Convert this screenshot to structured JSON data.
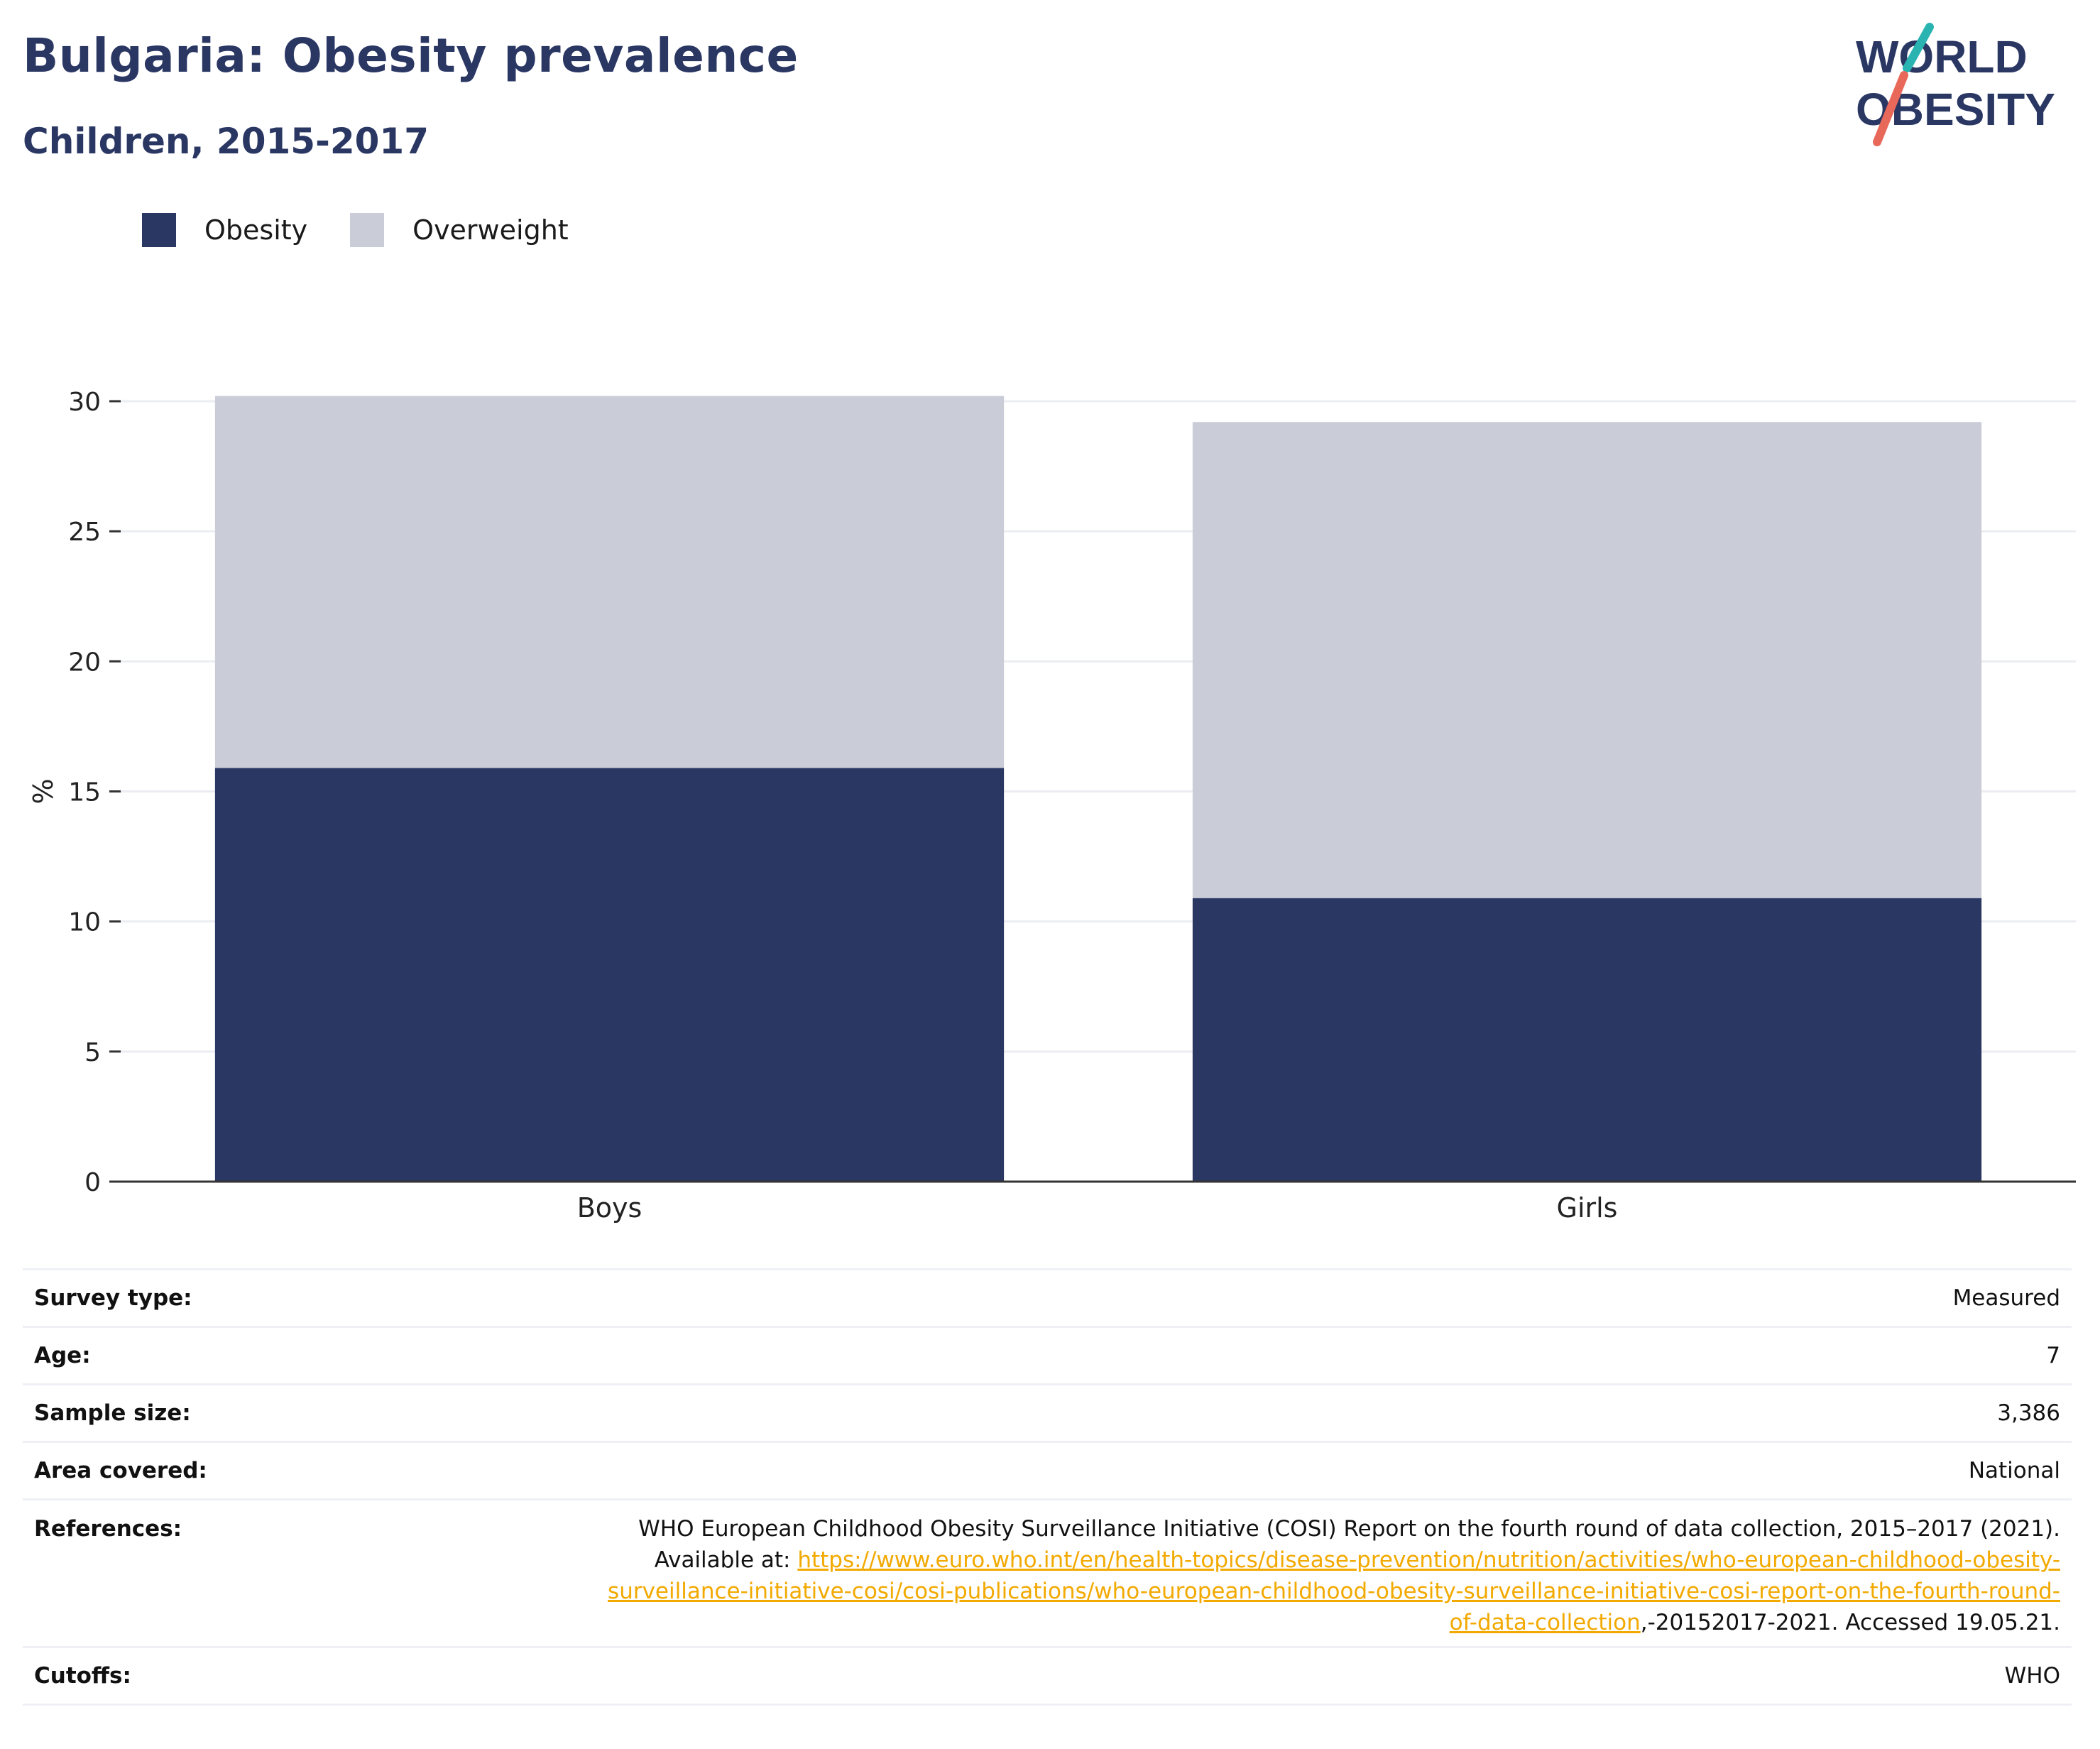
{
  "header": {
    "title": "Bulgaria: Obesity prevalence",
    "subtitle": "Children, 2015-2017",
    "logo_line1": "WORLD",
    "logo_line2": "OBESITY"
  },
  "colors": {
    "obesity": "#2a3763",
    "overweight": "#cacdd8",
    "title": "#2a3763",
    "link": "#f2a900",
    "logo_teal": "#29b3b1",
    "logo_coral": "#e8685a"
  },
  "chart_data": {
    "type": "bar",
    "stacked": true,
    "categories": [
      "Boys",
      "Girls"
    ],
    "series": [
      {
        "name": "Obesity",
        "values": [
          15.9,
          10.9
        ]
      },
      {
        "name": "Overweight",
        "values": [
          14.3,
          18.3
        ]
      }
    ],
    "ylabel": "%",
    "ylim": [
      0,
      30
    ],
    "yticks": [
      0,
      5,
      10,
      15,
      20,
      25,
      30
    ],
    "grid": true,
    "legend_position": "top-left"
  },
  "meta": {
    "rows": [
      {
        "key": "Survey type:",
        "value": "Measured"
      },
      {
        "key": "Age:",
        "value": "7"
      },
      {
        "key": "Sample size:",
        "value": "3,386"
      },
      {
        "key": "Area covered:",
        "value": "National"
      }
    ],
    "references": {
      "key": "References:",
      "text_before": "WHO European Childhood Obesity Surveillance Initiative (COSI) Report on the fourth round of data collection, 2015–2017 (2021). Available at: ",
      "link_line1": "https://www.euro.who.int/en/health-topics/disease-prevention/nutrition/activities/who-european-childhood-obesity-",
      "link_line2": "surveillance-initiative-cosi/cosi-publications/who-european-childhood-obesity-surveillance-initiative-cosi-report-on-the-fourth-round-",
      "link_line3": "of-data-collection",
      "text_after": ",-20152017-2021. Accessed 19.05.21."
    },
    "cutoffs": {
      "key": "Cutoffs:",
      "value": "WHO"
    }
  }
}
